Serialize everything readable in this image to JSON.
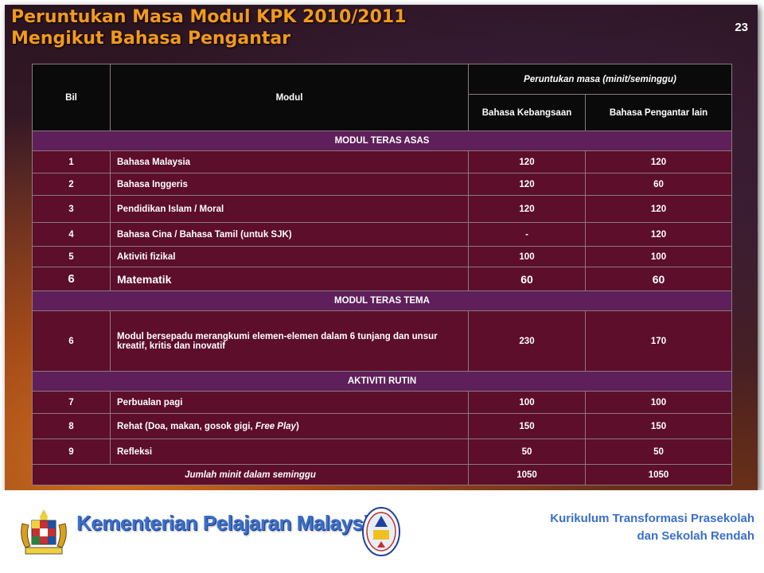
{
  "slide": {
    "title_line1": "Peruntukan Masa Modul KPK 2010/2011",
    "title_line2": "Mengikut Bahasa Pengantar",
    "number": "23"
  },
  "table": {
    "headers": {
      "bil": "Bil",
      "modul": "Modul",
      "peruntukan": "Peruntukan masa (minit/seminggu)",
      "bk": "Bahasa Kebangsaan",
      "bpl": "Bahasa Pengantar lain"
    },
    "sections": {
      "teras_asas": "MODUL TERAS ASAS",
      "teras_tema": "MODUL TERAS TEMA",
      "rutin": "AKTIVITI RUTIN"
    },
    "rows": [
      {
        "bil": "1",
        "modul": "Bahasa Malaysia",
        "bk": "120",
        "bpl": "120"
      },
      {
        "bil": "2",
        "modul": "Bahasa Inggeris",
        "bk": "120",
        "bpl": "60"
      },
      {
        "bil": "3",
        "modul": "Pendidikan Islam /  Moral",
        "bk": "120",
        "bpl": "120"
      },
      {
        "bil": "4",
        "modul": "Bahasa Cina / Bahasa Tamil (untuk SJK)",
        "bk": "-",
        "bpl": "120"
      },
      {
        "bil": "5",
        "modul": "Aktiviti fizikal",
        "bk": "100",
        "bpl": "100"
      },
      {
        "bil": "6",
        "modul": "Matematik",
        "bk": "60",
        "bpl": "60"
      },
      {
        "bil": "6",
        "modul": "Modul bersepadu merangkumi elemen-elemen dalam 6 tunjang dan unsur kreatif, kritis dan inovatif",
        "bk": "230",
        "bpl": "170"
      },
      {
        "bil": "7",
        "modul": "Perbualan pagi",
        "bk": "100",
        "bpl": "100"
      },
      {
        "bil": "8",
        "modul_pre": "Rehat (Doa, makan, gosok gigi, ",
        "modul_italic": "Free Play",
        "modul_post": ")",
        "bk": "150",
        "bpl": "150"
      },
      {
        "bil": "9",
        "modul": "Refleksi",
        "bk": "50",
        "bpl": "50"
      }
    ],
    "total": {
      "label": "Jumlah minit dalam seminggu",
      "bk": "1050",
      "bpl": "1050"
    }
  },
  "footer": {
    "ministry": "Kementerian Pelajaran Malaysia",
    "program_line1": "Kurikulum  Transformasi Prasekolah",
    "program_line2": "dan Sekolah Rendah"
  },
  "icons": {
    "crest": "malaysia-coat-of-arms-icon",
    "seal": "kpm-seal-icon"
  },
  "colors": {
    "title": "#f29a1b",
    "header_bg": "#0a0a0a",
    "section_bg": "#5e1f5a",
    "row_bg": "#5c0e2a",
    "footer_text": "#3a6fcc"
  }
}
